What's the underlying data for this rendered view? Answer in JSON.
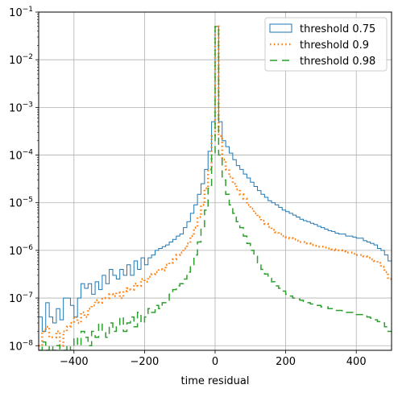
{
  "chart_data": {
    "type": "histogram-step",
    "xlabel": "time residual",
    "ylabel": "",
    "title": "",
    "xlim": [
      -500,
      500
    ],
    "ylim": [
      8e-09,
      0.1
    ],
    "yscale": "log",
    "grid": true,
    "legend_position": "top-right",
    "x_ticks": [
      -400,
      -200,
      0,
      200,
      400
    ],
    "x_tick_labels": [
      "−400",
      "−200",
      "0",
      "200",
      "400"
    ],
    "y_ticks": [
      1e-08,
      1e-07,
      1e-06,
      1e-05,
      0.0001,
      0.001,
      0.01,
      0.1
    ],
    "y_tick_labels": [
      {
        "base": "10",
        "exp": "−8"
      },
      {
        "base": "10",
        "exp": "−7"
      },
      {
        "base": "10",
        "exp": "−6"
      },
      {
        "base": "10",
        "exp": "−5"
      },
      {
        "base": "10",
        "exp": "−4"
      },
      {
        "base": "10",
        "exp": "−3"
      },
      {
        "base": "10",
        "exp": "−2"
      },
      {
        "base": "10",
        "exp": "−1"
      }
    ],
    "series": [
      {
        "name": "threshold 0.75",
        "color": "#1f77b4",
        "linestyle": "solid",
        "points": [
          [
            -500,
            4e-08
          ],
          [
            -490,
            2e-08
          ],
          [
            -480,
            8e-08
          ],
          [
            -470,
            4e-08
          ],
          [
            -460,
            3e-08
          ],
          [
            -450,
            6e-08
          ],
          [
            -440,
            3.5e-08
          ],
          [
            -430,
            1e-07
          ],
          [
            -420,
            1e-07
          ],
          [
            -410,
            7e-08
          ],
          [
            -400,
            4e-08
          ],
          [
            -390,
            1e-07
          ],
          [
            -380,
            2e-07
          ],
          [
            -370,
            1.6e-07
          ],
          [
            -360,
            2e-07
          ],
          [
            -350,
            1.2e-07
          ],
          [
            -340,
            2.2e-07
          ],
          [
            -330,
            1.5e-07
          ],
          [
            -320,
            3e-07
          ],
          [
            -310,
            2e-07
          ],
          [
            -300,
            4e-07
          ],
          [
            -290,
            3e-07
          ],
          [
            -280,
            2.5e-07
          ],
          [
            -270,
            4e-07
          ],
          [
            -260,
            3e-07
          ],
          [
            -250,
            5e-07
          ],
          [
            -240,
            3e-07
          ],
          [
            -230,
            6e-07
          ],
          [
            -220,
            4e-07
          ],
          [
            -210,
            7e-07
          ],
          [
            -200,
            5e-07
          ],
          [
            -190,
            7e-07
          ],
          [
            -180,
            8e-07
          ],
          [
            -170,
            1e-06
          ],
          [
            -160,
            1.1e-06
          ],
          [
            -150,
            1.2e-06
          ],
          [
            -140,
            1.3e-06
          ],
          [
            -130,
            1.5e-06
          ],
          [
            -120,
            1.7e-06
          ],
          [
            -110,
            2e-06
          ],
          [
            -100,
            2.2e-06
          ],
          [
            -90,
            3e-06
          ],
          [
            -80,
            4e-06
          ],
          [
            -70,
            6e-06
          ],
          [
            -60,
            9e-06
          ],
          [
            -50,
            1.5e-05
          ],
          [
            -40,
            2.5e-05
          ],
          [
            -30,
            5e-05
          ],
          [
            -20,
            0.00012
          ],
          [
            -10,
            0.0005
          ],
          [
            0,
            0.05
          ],
          [
            10,
            0.0005
          ],
          [
            20,
            0.0002
          ],
          [
            30,
            0.00015
          ],
          [
            40,
            0.00011
          ],
          [
            50,
            8e-05
          ],
          [
            60,
            6e-05
          ],
          [
            70,
            5e-05
          ],
          [
            80,
            4e-05
          ],
          [
            90,
            3.3e-05
          ],
          [
            100,
            2.7e-05
          ],
          [
            110,
            2.2e-05
          ],
          [
            120,
            1.8e-05
          ],
          [
            130,
            1.5e-05
          ],
          [
            140,
            1.3e-05
          ],
          [
            150,
            1.1e-05
          ],
          [
            160,
            1e-05
          ],
          [
            170,
            9e-06
          ],
          [
            180,
            8e-06
          ],
          [
            190,
            7e-06
          ],
          [
            200,
            6.5e-06
          ],
          [
            210,
            6e-06
          ],
          [
            220,
            5.5e-06
          ],
          [
            230,
            5e-06
          ],
          [
            240,
            4.5e-06
          ],
          [
            250,
            4.2e-06
          ],
          [
            260,
            4e-06
          ],
          [
            270,
            3.7e-06
          ],
          [
            280,
            3.5e-06
          ],
          [
            290,
            3.2e-06
          ],
          [
            300,
            3e-06
          ],
          [
            310,
            2.8e-06
          ],
          [
            320,
            2.6e-06
          ],
          [
            330,
            2.5e-06
          ],
          [
            340,
            2.3e-06
          ],
          [
            350,
            2.2e-06
          ],
          [
            360,
            2.2e-06
          ],
          [
            370,
            2e-06
          ],
          [
            380,
            2e-06
          ],
          [
            390,
            1.9e-06
          ],
          [
            400,
            1.8e-06
          ],
          [
            410,
            1.8e-06
          ],
          [
            420,
            1.6e-06
          ],
          [
            430,
            1.5e-06
          ],
          [
            440,
            1.4e-06
          ],
          [
            450,
            1.3e-06
          ],
          [
            460,
            1.1e-06
          ],
          [
            470,
            1e-06
          ],
          [
            480,
            8e-07
          ],
          [
            490,
            6e-07
          ]
        ]
      },
      {
        "name": "threshold 0.9",
        "color": "#ff7f0e",
        "linestyle": "dotted",
        "points": [
          [
            -500,
            1e-08
          ],
          [
            -490,
            2e-08
          ],
          [
            -480,
            2.5e-08
          ],
          [
            -470,
            1.5e-08
          ],
          [
            -460,
            1.5e-08
          ],
          [
            -450,
            2e-08
          ],
          [
            -440,
            1e-08
          ],
          [
            -430,
            2e-08
          ],
          [
            -420,
            2.5e-08
          ],
          [
            -410,
            3e-08
          ],
          [
            -400,
            4e-08
          ],
          [
            -390,
            3e-08
          ],
          [
            -380,
            5e-08
          ],
          [
            -370,
            4e-08
          ],
          [
            -360,
            6e-08
          ],
          [
            -350,
            7e-08
          ],
          [
            -340,
            9e-08
          ],
          [
            -330,
            8e-08
          ],
          [
            -320,
            1e-07
          ],
          [
            -310,
            1e-07
          ],
          [
            -300,
            1.2e-07
          ],
          [
            -290,
            1.1e-07
          ],
          [
            -280,
            1.3e-07
          ],
          [
            -270,
            1e-07
          ],
          [
            -260,
            1.4e-07
          ],
          [
            -250,
            1.6e-07
          ],
          [
            -240,
            1.5e-07
          ],
          [
            -230,
            2e-07
          ],
          [
            -220,
            1.8e-07
          ],
          [
            -210,
            2.5e-07
          ],
          [
            -200,
            2.2e-07
          ],
          [
            -190,
            2.8e-07
          ],
          [
            -180,
            3.2e-07
          ],
          [
            -170,
            3.5e-07
          ],
          [
            -160,
            4e-07
          ],
          [
            -150,
            3.8e-07
          ],
          [
            -140,
            5e-07
          ],
          [
            -130,
            5.5e-07
          ],
          [
            -120,
            6.5e-07
          ],
          [
            -110,
            8e-07
          ],
          [
            -100,
            9e-07
          ],
          [
            -90,
            1.1e-06
          ],
          [
            -80,
            1.4e-06
          ],
          [
            -70,
            2e-06
          ],
          [
            -60,
            3e-06
          ],
          [
            -50,
            5e-06
          ],
          [
            -40,
            9e-06
          ],
          [
            -30,
            2e-05
          ],
          [
            -20,
            5e-05
          ],
          [
            -10,
            0.00025
          ],
          [
            0,
            0.05
          ],
          [
            10,
            0.00025
          ],
          [
            20,
            8e-05
          ],
          [
            30,
            5e-05
          ],
          [
            40,
            3.5e-05
          ],
          [
            50,
            2.5e-05
          ],
          [
            60,
            1.9e-05
          ],
          [
            70,
            1.5e-05
          ],
          [
            80,
            1.2e-05
          ],
          [
            90,
            9e-06
          ],
          [
            100,
            7.5e-06
          ],
          [
            110,
            6e-06
          ],
          [
            120,
            5e-06
          ],
          [
            130,
            4.2e-06
          ],
          [
            140,
            3.6e-06
          ],
          [
            150,
            3.1e-06
          ],
          [
            160,
            2.7e-06
          ],
          [
            170,
            2.4e-06
          ],
          [
            180,
            2.2e-06
          ],
          [
            190,
            2e-06
          ],
          [
            200,
            1.9e-06
          ],
          [
            210,
            1.8e-06
          ],
          [
            220,
            1.7e-06
          ],
          [
            230,
            1.6e-06
          ],
          [
            240,
            1.5e-06
          ],
          [
            250,
            1.5e-06
          ],
          [
            260,
            1.4e-06
          ],
          [
            270,
            1.3e-06
          ],
          [
            280,
            1.25e-06
          ],
          [
            290,
            1.2e-06
          ],
          [
            300,
            1.2e-06
          ],
          [
            310,
            1.15e-06
          ],
          [
            320,
            1.1e-06
          ],
          [
            330,
            1.05e-06
          ],
          [
            340,
            1e-06
          ],
          [
            350,
            1e-06
          ],
          [
            360,
            9.5e-07
          ],
          [
            370,
            9e-07
          ],
          [
            380,
            9e-07
          ],
          [
            390,
            8.5e-07
          ],
          [
            400,
            8e-07
          ],
          [
            410,
            8e-07
          ],
          [
            420,
            7.5e-07
          ],
          [
            430,
            7e-07
          ],
          [
            440,
            6.5e-07
          ],
          [
            450,
            6e-07
          ],
          [
            460,
            5.5e-07
          ],
          [
            470,
            4.5e-07
          ],
          [
            480,
            3.5e-07
          ],
          [
            490,
            2.5e-07
          ]
        ]
      },
      {
        "name": "threshold 0.98",
        "color": "#2ca02c",
        "linestyle": "dashed",
        "points": [
          [
            -500,
            8e-09
          ],
          [
            -490,
            1.2e-08
          ],
          [
            -480,
            8e-09
          ],
          [
            -470,
            1e-08
          ],
          [
            -460,
            8e-09
          ],
          [
            -450,
            1e-08
          ],
          [
            -440,
            8e-09
          ],
          [
            -430,
            8e-09
          ],
          [
            -420,
            1e-08
          ],
          [
            -410,
            8e-09
          ],
          [
            -400,
            1.5e-08
          ],
          [
            -390,
            1e-08
          ],
          [
            -380,
            2e-08
          ],
          [
            -370,
            1.5e-08
          ],
          [
            -360,
            1e-08
          ],
          [
            -350,
            2e-08
          ],
          [
            -340,
            1.5e-08
          ],
          [
            -330,
            3e-08
          ],
          [
            -320,
            2e-08
          ],
          [
            -310,
            1.5e-08
          ],
          [
            -300,
            3e-08
          ],
          [
            -290,
            2e-08
          ],
          [
            -280,
            2.5e-08
          ],
          [
            -270,
            4e-08
          ],
          [
            -260,
            2e-08
          ],
          [
            -250,
            3e-08
          ],
          [
            -240,
            4e-08
          ],
          [
            -230,
            2.5e-08
          ],
          [
            -220,
            5e-08
          ],
          [
            -210,
            3e-08
          ],
          [
            -200,
            4e-08
          ],
          [
            -190,
            6e-08
          ],
          [
            -180,
            5e-08
          ],
          [
            -170,
            7e-08
          ],
          [
            -160,
            6e-08
          ],
          [
            -150,
            8e-08
          ],
          [
            -140,
            9e-08
          ],
          [
            -130,
            1.2e-07
          ],
          [
            -120,
            1.5e-07
          ],
          [
            -110,
            1.8e-07
          ],
          [
            -100,
            2e-07
          ],
          [
            -90,
            2.5e-07
          ],
          [
            -80,
            3.5e-07
          ],
          [
            -70,
            5e-07
          ],
          [
            -60,
            8e-07
          ],
          [
            -50,
            1.5e-06
          ],
          [
            -40,
            3e-06
          ],
          [
            -30,
            7e-06
          ],
          [
            -20,
            2e-05
          ],
          [
            -10,
            0.0001
          ],
          [
            0,
            0.05
          ],
          [
            10,
            0.0001
          ],
          [
            20,
            3e-05
          ],
          [
            30,
            1.5e-05
          ],
          [
            40,
            9e-06
          ],
          [
            50,
            6e-06
          ],
          [
            60,
            4e-06
          ],
          [
            70,
            3e-06
          ],
          [
            80,
            2e-06
          ],
          [
            90,
            1.4e-06
          ],
          [
            100,
            1e-06
          ],
          [
            110,
            7.5e-07
          ],
          [
            120,
            5.5e-07
          ],
          [
            130,
            4e-07
          ],
          [
            140,
            3.2e-07
          ],
          [
            150,
            2.6e-07
          ],
          [
            160,
            2.2e-07
          ],
          [
            170,
            1.8e-07
          ],
          [
            180,
            1.6e-07
          ],
          [
            190,
            1.4e-07
          ],
          [
            200,
            1.2e-07
          ],
          [
            210,
            1.1e-07
          ],
          [
            220,
            1e-07
          ],
          [
            230,
            9.5e-08
          ],
          [
            240,
            9e-08
          ],
          [
            250,
            8.5e-08
          ],
          [
            260,
            8e-08
          ],
          [
            270,
            7.5e-08
          ],
          [
            280,
            7e-08
          ],
          [
            290,
            7e-08
          ],
          [
            300,
            6.5e-08
          ],
          [
            310,
            6.5e-08
          ],
          [
            320,
            6e-08
          ],
          [
            330,
            6e-08
          ],
          [
            340,
            5.5e-08
          ],
          [
            350,
            5.5e-08
          ],
          [
            360,
            5e-08
          ],
          [
            370,
            5e-08
          ],
          [
            380,
            5e-08
          ],
          [
            390,
            4.8e-08
          ],
          [
            400,
            4.5e-08
          ],
          [
            410,
            4.5e-08
          ],
          [
            420,
            4.2e-08
          ],
          [
            430,
            4e-08
          ],
          [
            440,
            3.8e-08
          ],
          [
            450,
            3.5e-08
          ],
          [
            460,
            3.2e-08
          ],
          [
            470,
            3e-08
          ],
          [
            480,
            2.5e-08
          ],
          [
            490,
            2e-08
          ]
        ]
      }
    ]
  }
}
